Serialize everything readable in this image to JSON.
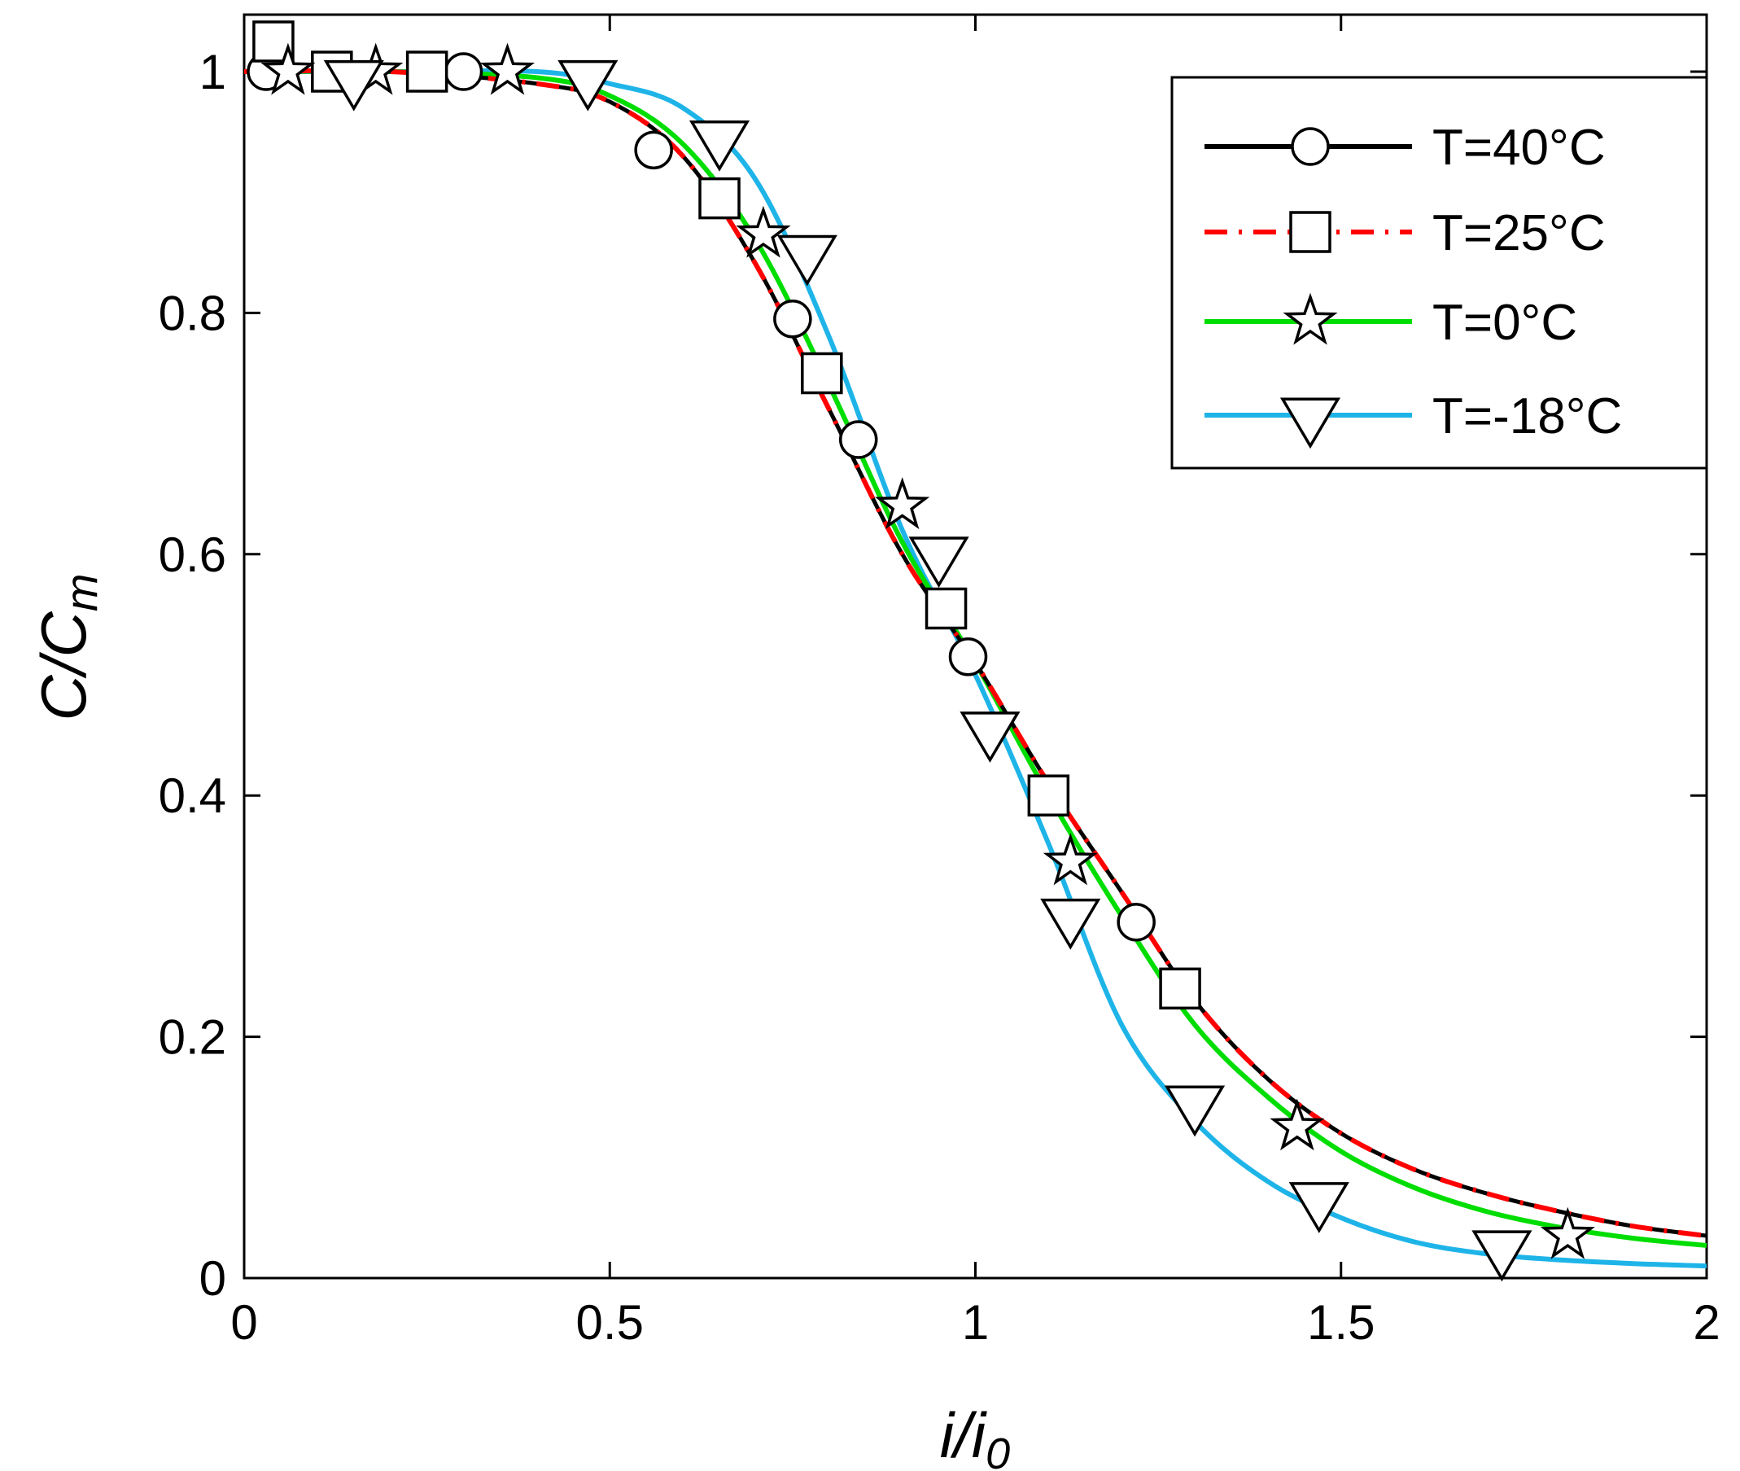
{
  "chart_data": {
    "type": "line",
    "title": "",
    "xlabel": {
      "main": "i/i",
      "sub": "0"
    },
    "ylabel": {
      "main": "C/C",
      "sub": "m"
    },
    "xlim": [
      0,
      2
    ],
    "ylim": [
      0,
      1.05
    ],
    "xticks": [
      0,
      0.5,
      1,
      1.5,
      2
    ],
    "xtick_labels": [
      "0",
      "0.5",
      "1",
      "1.5",
      "2"
    ],
    "yticks": [
      0,
      0.2,
      0.4,
      0.6,
      0.8,
      1
    ],
    "ytick_labels": [
      "0",
      "0.2",
      "0.4",
      "0.6",
      "0.8",
      "1"
    ],
    "grid": false,
    "legend_position": "top-right",
    "series": [
      {
        "name": "T=40°C",
        "color": "#000000",
        "dash": "solid",
        "marker": "circle",
        "curve": {
          "x": [
            0,
            0.2,
            0.4,
            0.5,
            0.6,
            0.7,
            0.8,
            0.9,
            1.0,
            1.1,
            1.2,
            1.3,
            1.4,
            1.5,
            1.6,
            1.7,
            1.8,
            1.9,
            2.0
          ],
          "y": [
            1.0,
            1.0,
            0.99,
            0.975,
            0.93,
            0.84,
            0.72,
            0.6,
            0.51,
            0.41,
            0.32,
            0.23,
            0.165,
            0.12,
            0.09,
            0.07,
            0.055,
            0.043,
            0.035
          ]
        },
        "points": {
          "x": [
            0.03,
            0.3,
            0.56,
            0.75,
            0.84,
            0.99,
            1.22
          ],
          "y": [
            1.0,
            1.0,
            0.935,
            0.795,
            0.695,
            0.515,
            0.295
          ]
        }
      },
      {
        "name": "T=25°C",
        "color": "#ff0000",
        "dash": "dash-dot",
        "marker": "square",
        "curve": {
          "x": [
            0,
            0.2,
            0.4,
            0.5,
            0.6,
            0.7,
            0.8,
            0.9,
            1.0,
            1.1,
            1.2,
            1.3,
            1.4,
            1.5,
            1.6,
            1.7,
            1.8,
            1.9,
            2.0
          ],
          "y": [
            1.0,
            1.0,
            0.99,
            0.975,
            0.93,
            0.84,
            0.72,
            0.6,
            0.51,
            0.41,
            0.32,
            0.23,
            0.165,
            0.12,
            0.09,
            0.07,
            0.055,
            0.043,
            0.035
          ]
        },
        "points": {
          "x": [
            0.04,
            0.12,
            0.25,
            0.65,
            0.79,
            0.96,
            1.1,
            1.28
          ],
          "y": [
            1.025,
            1.0,
            1.0,
            0.895,
            0.75,
            0.555,
            0.4,
            0.24
          ]
        }
      },
      {
        "name": "T=0°C",
        "color": "#00dd00",
        "dash": "solid",
        "marker": "star",
        "curve": {
          "x": [
            0,
            0.2,
            0.4,
            0.5,
            0.6,
            0.7,
            0.8,
            0.9,
            1.0,
            1.1,
            1.2,
            1.3,
            1.4,
            1.5,
            1.6,
            1.7,
            1.8,
            1.9,
            2.0
          ],
          "y": [
            1.0,
            1.0,
            0.995,
            0.98,
            0.94,
            0.86,
            0.74,
            0.61,
            0.51,
            0.4,
            0.3,
            0.21,
            0.15,
            0.105,
            0.075,
            0.055,
            0.042,
            0.033,
            0.027
          ]
        },
        "points": {
          "x": [
            0.06,
            0.18,
            0.36,
            0.71,
            0.9,
            1.13,
            1.44,
            1.81
          ],
          "y": [
            1.0,
            1.0,
            1.0,
            0.865,
            0.64,
            0.345,
            0.125,
            0.035
          ]
        }
      },
      {
        "name": "T=-18°C",
        "color": "#1eb4e8",
        "dash": "solid",
        "marker": "triangle-down",
        "curve": {
          "x": [
            0,
            0.2,
            0.4,
            0.5,
            0.6,
            0.7,
            0.8,
            0.9,
            1.0,
            1.1,
            1.2,
            1.3,
            1.4,
            1.5,
            1.6,
            1.7,
            1.8,
            1.9,
            2.0
          ],
          "y": [
            1.0,
            1.0,
            1.0,
            0.99,
            0.97,
            0.91,
            0.78,
            0.62,
            0.5,
            0.36,
            0.21,
            0.13,
            0.08,
            0.05,
            0.03,
            0.02,
            0.015,
            0.012,
            0.01
          ]
        },
        "points": {
          "x": [
            0.15,
            0.47,
            0.65,
            0.77,
            0.95,
            1.02,
            1.13,
            1.3,
            1.47,
            1.72
          ],
          "y": [
            0.995,
            0.995,
            0.945,
            0.85,
            0.6,
            0.455,
            0.3,
            0.145,
            0.065,
            0.025
          ]
        }
      }
    ]
  }
}
